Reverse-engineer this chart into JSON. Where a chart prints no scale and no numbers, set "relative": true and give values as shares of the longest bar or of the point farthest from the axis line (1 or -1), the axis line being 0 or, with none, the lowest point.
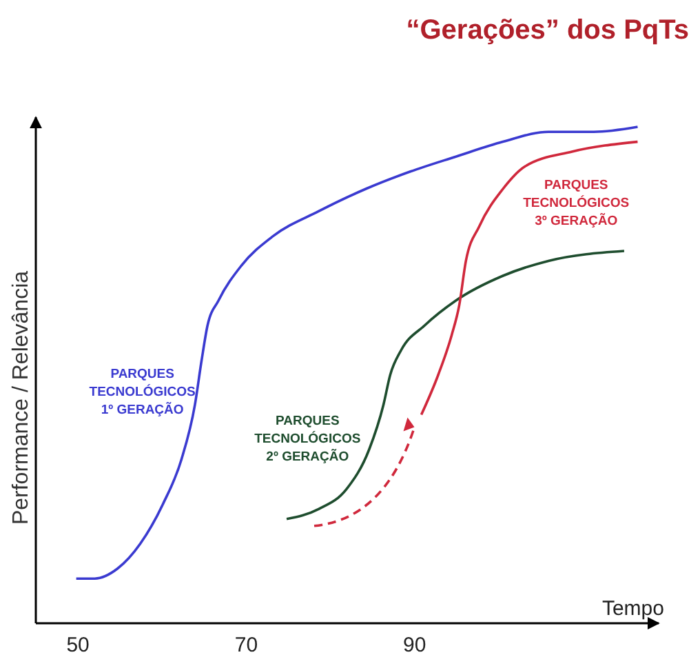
{
  "chart_data": {
    "type": "line",
    "title": "“Gerações” dos PqTs",
    "xlabel": "Tempo",
    "ylabel": "Performance / Relevância",
    "relative": true,
    "xlim": [
      45,
      119
    ],
    "xticks": [
      50,
      70,
      90
    ],
    "marker": "none",
    "line_style": "solid",
    "series": [
      {
        "name": "PARQUES TECNOLÓGICOS 1º GERAÇÃO",
        "color": "#3a3ad0",
        "x": [
          49.8,
          52,
          54.7,
          57.4,
          60.1,
          62.3,
          63.9,
          64.7,
          65.4,
          66.7,
          69.4,
          73.2,
          78.6,
          84.2,
          89.5,
          94.9,
          100.5,
          105.9,
          111.3,
          116.5
        ],
        "values": [
          0.09,
          0.09,
          0.11,
          0.16,
          0.24,
          0.33,
          0.44,
          0.53,
          0.6,
          0.65,
          0.72,
          0.78,
          0.83,
          0.875,
          0.91,
          0.94,
          0.97,
          0.99,
          0.99,
          1
        ]
      },
      {
        "name": "PARQUES TECNOLÓGICOS 2º GERAÇÃO",
        "color": "#1e4d2e",
        "x": [
          74.8,
          78.6,
          81.9,
          84.6,
          86.3,
          87.1,
          88.4,
          91.2,
          94.9,
          100.5,
          105.9,
          114.9
        ],
        "values": [
          0.21,
          0.23,
          0.27,
          0.35,
          0.44,
          0.5,
          0.55,
          0.6,
          0.65,
          0.7,
          0.73,
          0.75
        ]
      },
      {
        "name": "PARQUES TECNOLÓGICOS 3º GERAÇÃO",
        "color": "#d0283c",
        "x": [
          90.8,
          92.8,
          94.4,
          95.3,
          96.1,
          97.7,
          100.5,
          103.1,
          108.7,
          116.5
        ],
        "values": [
          0.42,
          0.5,
          0.58,
          0.64,
          0.73,
          0.8,
          0.875,
          0.92,
          0.95,
          0.97
        ]
      }
    ]
  }
}
